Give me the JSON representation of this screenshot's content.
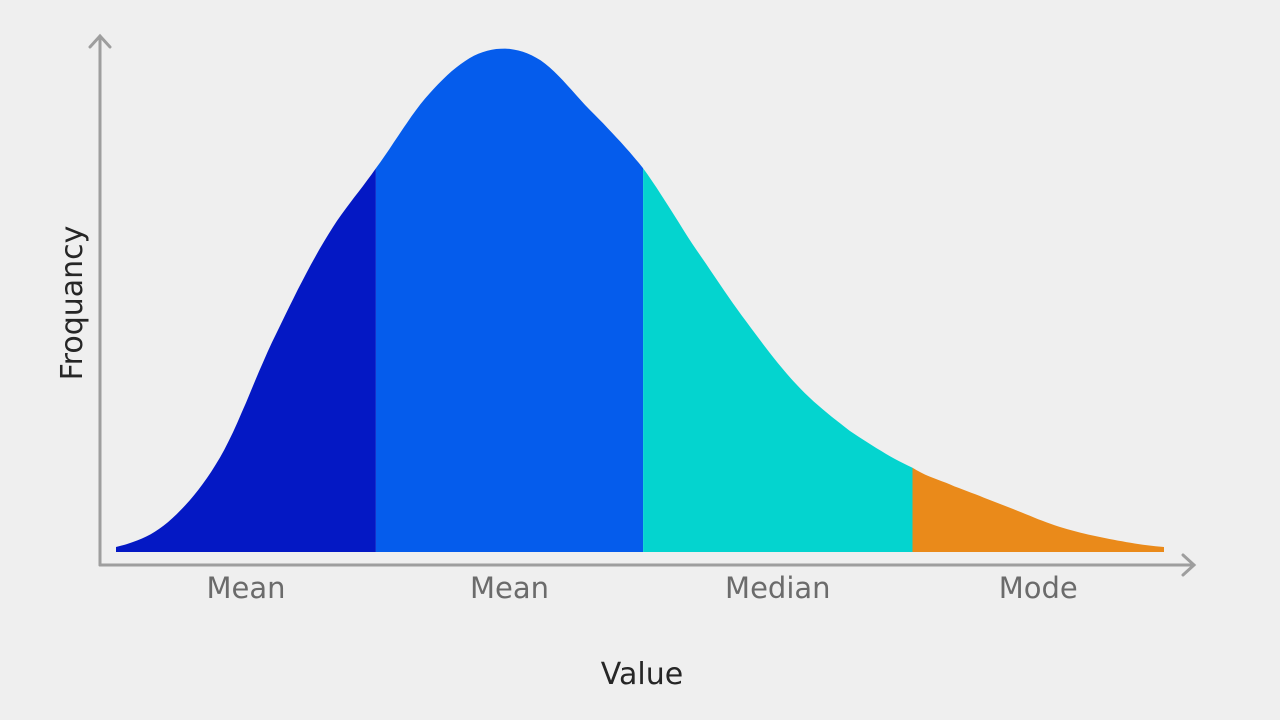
{
  "chart_data": {
    "type": "area",
    "title": "",
    "xlabel": "Value",
    "ylabel": "Froquancy",
    "x_range": [
      0,
      1
    ],
    "y_range": [
      0,
      1
    ],
    "grid": false,
    "legend": "none",
    "curve": {
      "x": [
        0,
        0.05,
        0.1,
        0.15,
        0.2,
        0.248,
        0.3,
        0.35,
        0.4,
        0.45,
        0.503,
        0.55,
        0.6,
        0.65,
        0.7,
        0.76,
        0.8,
        0.85,
        0.9,
        0.95,
        1
      ],
      "y": [
        0.01,
        0.06,
        0.19,
        0.42,
        0.62,
        0.76,
        0.91,
        0.99,
        0.98,
        0.88,
        0.76,
        0.61,
        0.46,
        0.33,
        0.24,
        0.167,
        0.13,
        0.09,
        0.05,
        0.025,
        0.01
      ]
    },
    "regions": [
      {
        "label": "Mean",
        "x_start": 0,
        "x_end": 0.248,
        "color": "#0418c4"
      },
      {
        "label": "Mean",
        "x_start": 0.248,
        "x_end": 0.503,
        "color": "#055cec"
      },
      {
        "label": "Median",
        "x_start": 0.503,
        "x_end": 0.76,
        "color": "#04d4cf"
      },
      {
        "label": "Mode",
        "x_start": 0.76,
        "x_end": 1,
        "color": "#ea8a1a"
      }
    ],
    "axis_color": "#9e9e9e"
  }
}
